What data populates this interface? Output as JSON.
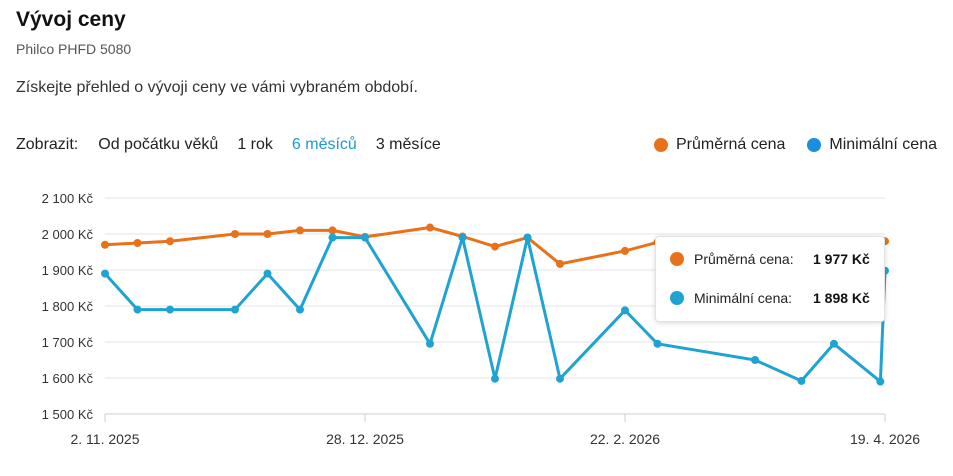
{
  "header": {
    "title": "Vývoj ceny",
    "product": "Philco PHFD 5080",
    "description": "Získejte přehled o vývoji ceny ve vámi vybraném období."
  },
  "range": {
    "label": "Zobrazit:",
    "options": [
      "Od počátku věků",
      "1 rok",
      "6 měsíců",
      "3 měsíce"
    ],
    "active_index": 2
  },
  "legend": {
    "avg_label": "Průměrná cena",
    "min_label": "Minimální cena"
  },
  "colors": {
    "avg": "#e8711a",
    "min": "#1fa3d3",
    "active_link": "#1a9ad6"
  },
  "tooltip": {
    "avg_label": "Průměrná cena:",
    "avg_value": "1 977 Kč",
    "min_label": "Minimální cena:",
    "min_value": "1 898 Kč"
  },
  "chart_data": {
    "type": "line",
    "x_start": "2025-11-02",
    "x_end": "2026-04-19",
    "x_ticks": [
      {
        "date": "2025-11-02",
        "label": "2. 11. 2025"
      },
      {
        "date": "2025-12-28",
        "label": "28. 12. 2025"
      },
      {
        "date": "2026-02-22",
        "label": "22. 2. 2026"
      },
      {
        "date": "2026-04-19",
        "label": "19. 4. 2026"
      }
    ],
    "y_ticks": [
      1500,
      1600,
      1700,
      1800,
      1900,
      2000,
      2100
    ],
    "y_tick_labels": [
      "1 500 Kč",
      "1 600 Kč",
      "1 700 Kč",
      "1 800 Kč",
      "1 900 Kč",
      "2 000 Kč",
      "2 100 Kč"
    ],
    "ylim": [
      1500,
      2100
    ],
    "grid": true,
    "legend_position": "top-right",
    "series": [
      {
        "name": "Průměrná cena",
        "color": "#e8711a",
        "points": [
          [
            "2025-11-02",
            1970
          ],
          [
            "2025-11-09",
            1975
          ],
          [
            "2025-11-16",
            1980
          ],
          [
            "2025-11-30",
            2000
          ],
          [
            "2025-12-07",
            2000
          ],
          [
            "2025-12-14",
            2010
          ],
          [
            "2025-12-21",
            2010
          ],
          [
            "2025-12-28",
            1992
          ],
          [
            "2026-01-11",
            2018
          ],
          [
            "2026-01-18",
            1993
          ],
          [
            "2026-01-25",
            1965
          ],
          [
            "2026-02-01",
            1990
          ],
          [
            "2026-02-08",
            1917
          ],
          [
            "2026-02-22",
            1953
          ],
          [
            "2026-03-01",
            1977
          ],
          [
            "2026-04-19",
            1980
          ]
        ]
      },
      {
        "name": "Minimální cena",
        "color": "#1fa3d3",
        "points": [
          [
            "2025-11-02",
            1890
          ],
          [
            "2025-11-09",
            1790
          ],
          [
            "2025-11-16",
            1790
          ],
          [
            "2025-11-30",
            1790
          ],
          [
            "2025-12-07",
            1890
          ],
          [
            "2025-12-14",
            1790
          ],
          [
            "2025-12-21",
            1990
          ],
          [
            "2025-12-28",
            1990
          ],
          [
            "2026-01-11",
            1695
          ],
          [
            "2026-01-18",
            1990
          ],
          [
            "2026-01-25",
            1598
          ],
          [
            "2026-02-01",
            1990
          ],
          [
            "2026-02-08",
            1598
          ],
          [
            "2026-02-22",
            1788
          ],
          [
            "2026-03-01",
            1695
          ],
          [
            "2026-03-22",
            1650
          ],
          [
            "2026-04-01",
            1592
          ],
          [
            "2026-04-08",
            1695
          ],
          [
            "2026-04-18",
            1590
          ],
          [
            "2026-04-19",
            1898
          ]
        ]
      }
    ]
  }
}
